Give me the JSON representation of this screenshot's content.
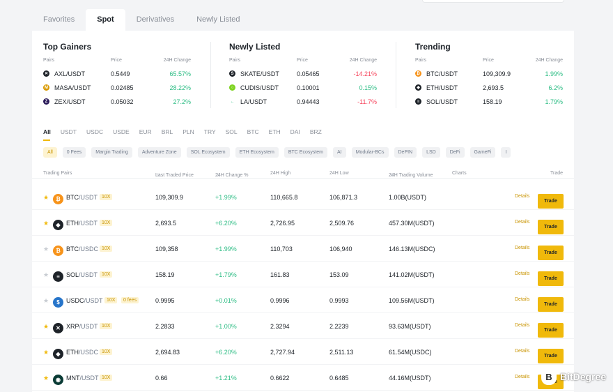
{
  "tabs": [
    {
      "label": "Favorites",
      "active": false
    },
    {
      "label": "Spot",
      "active": true
    },
    {
      "label": "Derivatives",
      "active": false
    },
    {
      "label": "Newly Listed",
      "active": false
    }
  ],
  "summary": {
    "headers": {
      "pairs": "Pairs",
      "price": "Price",
      "change": "24H Change"
    },
    "top_gainers": {
      "title": "Top Gainers",
      "rows": [
        {
          "pair": "AXL/USDT",
          "price": "0.5449",
          "change": "65.57%",
          "icon": "axl-icon",
          "dir": "up"
        },
        {
          "pair": "MASA/USDT",
          "price": "0.02485",
          "change": "28.22%",
          "icon": "masa-icon",
          "dir": "up"
        },
        {
          "pair": "ZEX/USDT",
          "price": "0.05032",
          "change": "27.2%",
          "icon": "zex-icon",
          "dir": "up"
        }
      ]
    },
    "newly_listed": {
      "title": "Newly Listed",
      "rows": [
        {
          "pair": "SKATE/USDT",
          "price": "0.05465",
          "change": "-14.21%",
          "icon": "skate-icon",
          "dir": "down"
        },
        {
          "pair": "CUDIS/USDT",
          "price": "0.10001",
          "change": "0.15%",
          "icon": "cudis-icon",
          "dir": "up"
        },
        {
          "pair": "LA/USDT",
          "price": "0.94443",
          "change": "-11.7%",
          "icon": "la-icon",
          "dir": "down"
        }
      ]
    },
    "trending": {
      "title": "Trending",
      "rows": [
        {
          "pair": "BTC/USDT",
          "price": "109,309.9",
          "change": "1.99%",
          "icon": "btc-icon",
          "dir": "up"
        },
        {
          "pair": "ETH/USDT",
          "price": "2,693.5",
          "change": "6.2%",
          "icon": "eth-icon",
          "dir": "up"
        },
        {
          "pair": "SOL/USDT",
          "price": "158.19",
          "change": "1.79%",
          "icon": "sol-icon",
          "dir": "up"
        }
      ]
    }
  },
  "quotes": [
    "All",
    "USDT",
    "USDC",
    "USDE",
    "EUR",
    "BRL",
    "PLN",
    "TRY",
    "SOL",
    "BTC",
    "ETH",
    "DAI",
    "BRZ"
  ],
  "active_quote": "All",
  "chips": [
    "All",
    "0 Fees",
    "Margin Trading",
    "Adventure Zone",
    "SOL Ecosystem",
    "ETH Ecosystem",
    "BTC Ecosystem",
    "AI",
    "Modular-BCs",
    "DePIN",
    "LSD",
    "DeFi",
    "GameFi",
    "I"
  ],
  "active_chip": "All",
  "table": {
    "headers": {
      "pairs": "Trading Pairs",
      "last": "Last Traded Price",
      "change": "24H Change %",
      "high": "24H High",
      "low": "24H Low",
      "volume": "24H Trading Volume",
      "charts": "Charts",
      "trade": "Trade"
    },
    "details_label": "Details",
    "trade_label": "Trade",
    "rows": [
      {
        "base": "BTC",
        "quote": "/USDT",
        "lev": "10X",
        "fee": "",
        "last": "109,309.9",
        "change": "+1.99%",
        "high": "110,665.8",
        "low": "106,871.3",
        "volume": "1.00B(USDT)",
        "fav": true,
        "icon": "btc-icon"
      },
      {
        "base": "ETH",
        "quote": "/USDT",
        "lev": "10X",
        "fee": "",
        "last": "2,693.5",
        "change": "+6.20%",
        "high": "2,726.95",
        "low": "2,509.76",
        "volume": "457.30M(USDT)",
        "fav": true,
        "icon": "eth-icon"
      },
      {
        "base": "BTC",
        "quote": "/USDC",
        "lev": "10X",
        "fee": "",
        "last": "109,358",
        "change": "+1.99%",
        "high": "110,703",
        "low": "106,940",
        "volume": "146.13M(USDC)",
        "fav": false,
        "icon": "btc-icon"
      },
      {
        "base": "SOL",
        "quote": "/USDT",
        "lev": "10X",
        "fee": "",
        "last": "158.19",
        "change": "+1.79%",
        "high": "161.83",
        "low": "153.09",
        "volume": "141.02M(USDT)",
        "fav": false,
        "icon": "sol-icon"
      },
      {
        "base": "USDC",
        "quote": "/USDT",
        "lev": "10X",
        "fee": "0 fees",
        "last": "0.9995",
        "change": "+0.01%",
        "high": "0.9996",
        "low": "0.9993",
        "volume": "109.56M(USDT)",
        "fav": false,
        "icon": "usdc-icon"
      },
      {
        "base": "XRP",
        "quote": "/USDT",
        "lev": "10X",
        "fee": "",
        "last": "2.2833",
        "change": "+1.00%",
        "high": "2.3294",
        "low": "2.2239",
        "volume": "93.63M(USDT)",
        "fav": true,
        "icon": "xrp-icon"
      },
      {
        "base": "ETH",
        "quote": "/USDC",
        "lev": "10X",
        "fee": "",
        "last": "2,694.83",
        "change": "+6.20%",
        "high": "2,727.94",
        "low": "2,511.13",
        "volume": "61.54M(USDC)",
        "fav": true,
        "icon": "eth-icon"
      },
      {
        "base": "MNT",
        "quote": "/USDT",
        "lev": "10X",
        "fee": "",
        "last": "0.66",
        "change": "+1.21%",
        "high": "0.6622",
        "low": "0.6485",
        "volume": "44.16M(USDT)",
        "fav": true,
        "icon": "mnt-icon"
      }
    ]
  },
  "watermark": {
    "text": "BitDegree"
  },
  "colors": {
    "accent": "#f0b90b",
    "up": "#2ebd85",
    "down": "#f6465d"
  }
}
